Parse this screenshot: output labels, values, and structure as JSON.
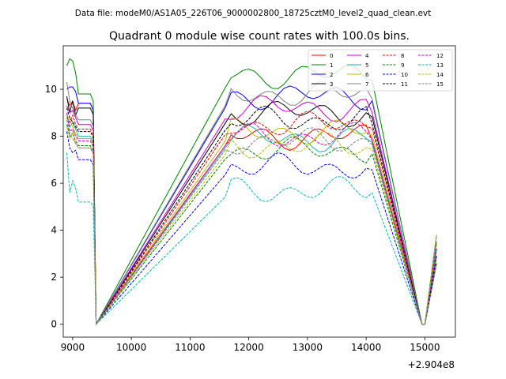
{
  "header": {
    "data_file": "Data file: modeM0/AS1A05_226T06_9000002800_18725cztM0_level2_quad_clean.evt"
  },
  "chart_data": {
    "type": "line",
    "title": "Quadrant 0 module wise count rates with 100.0s bins.",
    "xlabel": "",
    "ylabel": "",
    "x_offset_label": "+2.904e8",
    "xlim": [
      8840,
      15520
    ],
    "ylim": [
      -0.55,
      11.85
    ],
    "xticks": [
      9000,
      10000,
      11000,
      12000,
      13000,
      14000,
      15000
    ],
    "xtick_labels": [
      "9000",
      "10000",
      "11000",
      "12000",
      "13000",
      "14000",
      "15000"
    ],
    "yticks": [
      0,
      2,
      4,
      6,
      8,
      10
    ],
    "ytick_labels": [
      "0",
      "2",
      "4",
      "6",
      "8",
      "10"
    ],
    "grid": false,
    "legend_position": "top-right",
    "segments": [
      {
        "x0": 8900,
        "dx": 50,
        "n": 11
      },
      {
        "x0": 11600,
        "dx": 100,
        "n": 26
      },
      {
        "x0": 14950,
        "dx": 50,
        "n": 6
      }
    ],
    "series": [
      {
        "name": "0",
        "color": "#ff0000",
        "dash": "solid",
        "base": 8.0,
        "pre": [
          9.6,
          9.3,
          9.5,
          9.1,
          9.4
        ]
      },
      {
        "name": "1",
        "color": "#008000",
        "dash": "solid",
        "base": 10.6,
        "pre": [
          11.0,
          11.3,
          11.2,
          10.7,
          9.8
        ]
      },
      {
        "name": "2",
        "color": "#0000ff",
        "dash": "solid",
        "base": 9.7,
        "pre": [
          10.0,
          10.1,
          10.1,
          9.9,
          9.4
        ]
      },
      {
        "name": "3",
        "color": "#000000",
        "dash": "solid",
        "base": 9.0,
        "pre": [
          9.7,
          9.0,
          9.5,
          8.9,
          9.2
        ]
      },
      {
        "name": "4",
        "color": "#cc00cc",
        "dash": "solid",
        "base": 9.2,
        "pre": [
          9.3,
          9.0,
          9.1,
          8.8,
          8.5
        ]
      },
      {
        "name": "5",
        "color": "#20b2aa",
        "dash": "solid",
        "base": 7.9,
        "pre": [
          8.9,
          8.4,
          8.6,
          8.3,
          8.0
        ]
      },
      {
        "name": "6",
        "color": "#bbbb00",
        "dash": "solid",
        "base": 8.2,
        "pre": [
          8.9,
          8.7,
          8.4,
          8.1,
          7.9
        ]
      },
      {
        "name": "7",
        "color": "#808080",
        "dash": "solid",
        "base": 9.8,
        "pre": [
          10.3,
          9.5,
          9.2,
          8.9,
          8.7
        ]
      },
      {
        "name": "8",
        "color": "#ff0000",
        "dash": "dashed",
        "base": 8.5,
        "pre": [
          8.8,
          8.6,
          8.9,
          8.5,
          8.3
        ]
      },
      {
        "name": "9",
        "color": "#008000",
        "dash": "dashed",
        "base": 7.4,
        "pre": [
          8.5,
          8.0,
          8.1,
          7.8,
          7.6
        ]
      },
      {
        "name": "10",
        "color": "#0000ff",
        "dash": "dashed",
        "base": 6.7,
        "pre": [
          8.2,
          7.5,
          7.3,
          7.4,
          7.0
        ]
      },
      {
        "name": "11",
        "color": "#000000",
        "dash": "dashed",
        "base": 8.7,
        "pre": [
          9.2,
          8.8,
          8.6,
          8.4,
          8.2
        ]
      },
      {
        "name": "12",
        "color": "#cc00cc",
        "dash": "dashed",
        "base": 8.0,
        "pre": [
          9.0,
          8.2,
          8.3,
          8.0,
          7.8
        ]
      },
      {
        "name": "13",
        "color": "#00bbbb",
        "dash": "dashed",
        "base": 5.7,
        "pre": [
          7.3,
          5.6,
          6.1,
          5.8,
          5.2
        ]
      },
      {
        "name": "14",
        "color": "#bbbb00",
        "dash": "dashed",
        "base": 7.6,
        "pre": [
          8.4,
          7.9,
          8.2,
          7.7,
          7.5
        ]
      },
      {
        "name": "15",
        "color": "#808080",
        "dash": "dashed",
        "base": 7.8,
        "pre": [
          8.7,
          8.1,
          7.9,
          7.7,
          7.5
        ]
      }
    ]
  }
}
